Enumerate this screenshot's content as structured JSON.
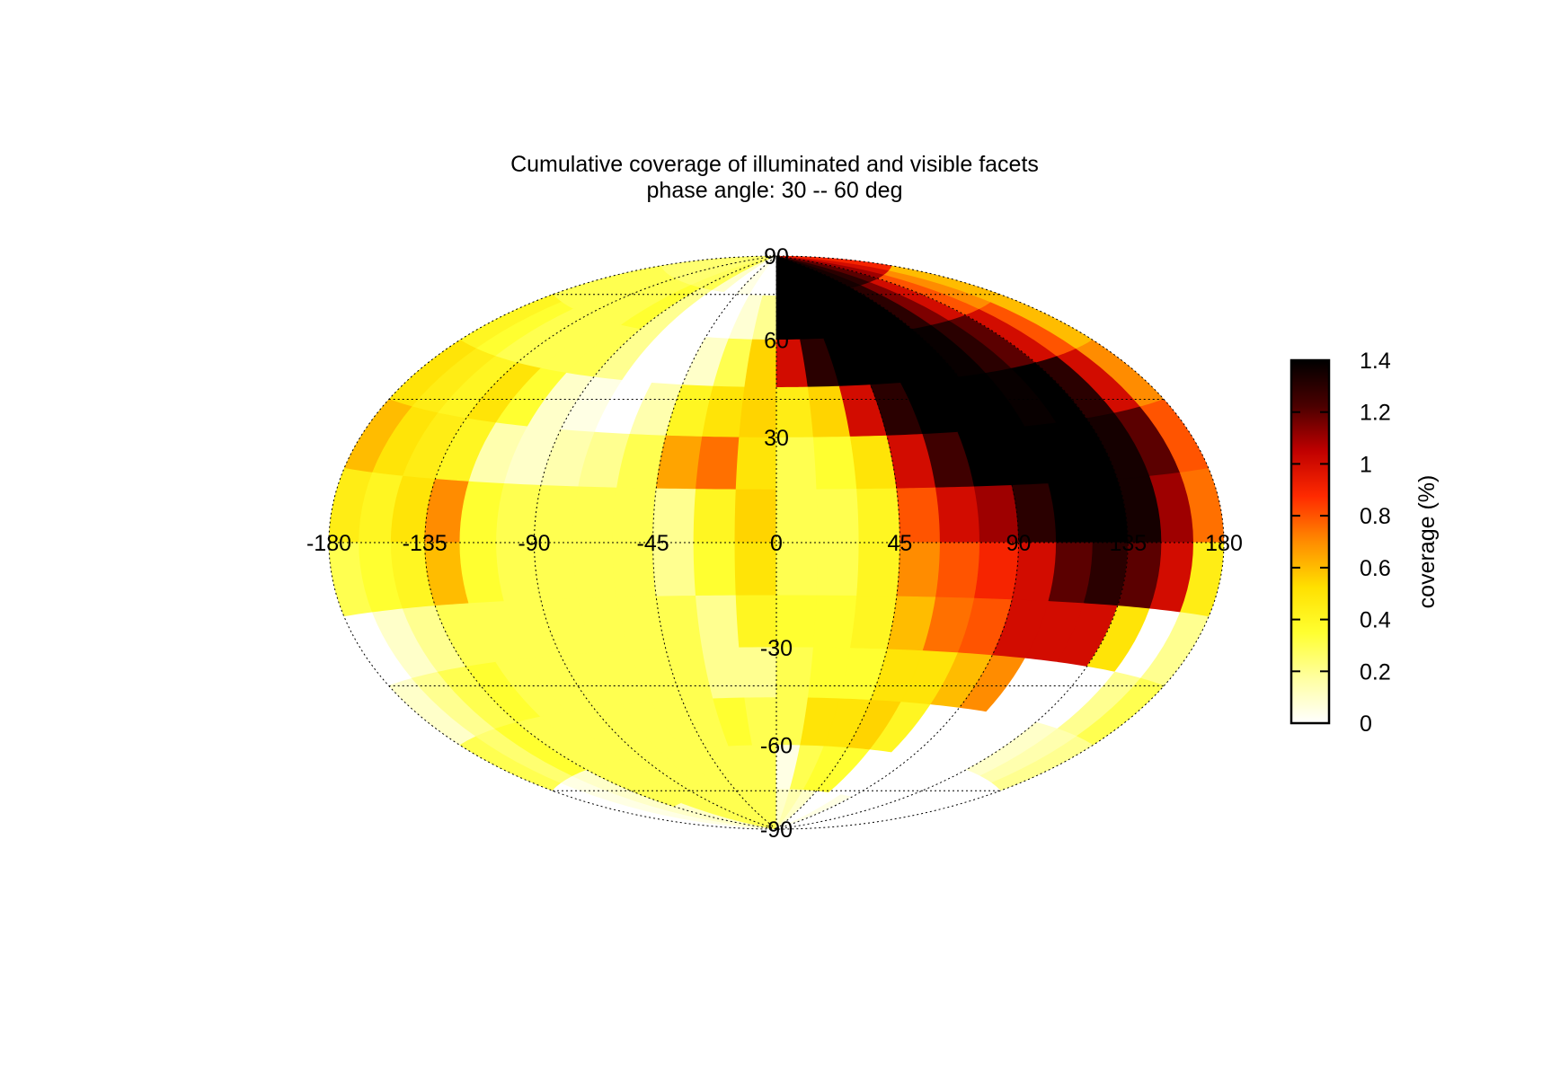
{
  "chart_data": {
    "type": "heatmap",
    "projection": "hammer-aitoff",
    "title": "Cumulative coverage of illuminated and visible facets",
    "subtitle": "phase angle:  30 --  60 deg",
    "x_ticks": [
      "-180",
      "-135",
      "-90",
      "-45",
      "0",
      "45",
      "90",
      "135",
      "180"
    ],
    "y_ticks": [
      "90",
      "60",
      "30",
      "-30",
      "-60",
      "-90"
    ],
    "xlim": [
      -180,
      180
    ],
    "ylim": [
      -90,
      90
    ],
    "grid": true,
    "colorbar": {
      "label": "coverage (%)",
      "ticks": [
        "0",
        "0.2",
        "0.4",
        "0.6",
        "0.8",
        "1",
        "1.2",
        "1.4"
      ],
      "range": [
        0,
        1.4
      ],
      "palette": [
        "#ffffff",
        "#ffffa0",
        "#ffff30",
        "#ffe000",
        "#ff8c00",
        "#ff2a00",
        "#c00000",
        "#4a0000",
        "#000000"
      ]
    },
    "lon_bins_deg": [
      -180,
      -165,
      -150,
      -135,
      -120,
      -105,
      -90,
      -75,
      -60,
      -45,
      -30,
      -15,
      0,
      15,
      30,
      45,
      60,
      75,
      90,
      105,
      120,
      135,
      150,
      165,
      180
    ],
    "lat_bins_deg": [
      90,
      75,
      60,
      45,
      30,
      15,
      0,
      -15,
      -30,
      -45,
      -60,
      -75,
      -90
    ],
    "values": [
      [
        0.25,
        0.25,
        0.25,
        0.25,
        0.25,
        0.28,
        0.3,
        0.1,
        0.0,
        0.05,
        0.0,
        0.0,
        1.4,
        1.4,
        1.4,
        1.4,
        1.4,
        1.4,
        1.35,
        1.3,
        1.2,
        1.1,
        1.0,
        0.9
      ],
      [
        0.3,
        0.3,
        0.3,
        0.3,
        0.3,
        0.35,
        0.2,
        0.0,
        0.0,
        0.0,
        0.08,
        0.2,
        1.4,
        1.4,
        1.4,
        1.4,
        1.4,
        1.4,
        1.3,
        1.15,
        1.0,
        0.8,
        0.7,
        0.6
      ],
      [
        0.4,
        0.35,
        0.3,
        0.3,
        0.3,
        0.3,
        0.2,
        0.0,
        0.0,
        0.1,
        0.3,
        0.55,
        1.0,
        1.3,
        1.4,
        1.4,
        1.4,
        1.4,
        1.38,
        1.3,
        1.2,
        1.0,
        0.8,
        0.6
      ],
      [
        0.5,
        0.45,
        0.4,
        0.5,
        0.35,
        0.1,
        0.05,
        0.0,
        0.15,
        0.4,
        0.5,
        0.55,
        0.45,
        0.55,
        1.0,
        1.3,
        1.4,
        1.4,
        1.4,
        1.38,
        1.4,
        1.3,
        1.0,
        0.7
      ],
      [
        0.6,
        0.5,
        0.45,
        0.4,
        0.15,
        0.1,
        0.15,
        0.2,
        0.3,
        0.65,
        0.75,
        0.5,
        0.3,
        0.35,
        0.5,
        1.0,
        1.25,
        1.4,
        1.4,
        1.4,
        1.4,
        1.35,
        1.2,
        0.8
      ],
      [
        0.45,
        0.4,
        0.5,
        0.7,
        0.35,
        0.3,
        0.3,
        0.3,
        0.3,
        0.2,
        0.4,
        0.55,
        0.3,
        0.3,
        0.4,
        0.8,
        1.0,
        1.1,
        1.3,
        1.4,
        1.4,
        1.35,
        1.1,
        0.75
      ],
      [
        0.3,
        0.35,
        0.4,
        0.6,
        0.35,
        0.3,
        0.3,
        0.3,
        0.3,
        0.2,
        0.35,
        0.5,
        0.3,
        0.3,
        0.4,
        0.7,
        0.8,
        0.9,
        1.0,
        1.2,
        1.3,
        1.2,
        1.0,
        0.45
      ],
      [
        0.0,
        0.1,
        0.2,
        0.3,
        0.3,
        0.3,
        0.3,
        0.3,
        0.3,
        0.3,
        0.2,
        0.4,
        0.35,
        0.35,
        0.4,
        0.6,
        0.75,
        0.8,
        1.0,
        1.0,
        1.0,
        0.5,
        0.0,
        0.2
      ],
      [
        0.1,
        0.2,
        0.3,
        0.35,
        0.3,
        0.3,
        0.3,
        0.3,
        0.3,
        0.3,
        0.2,
        0.2,
        0.3,
        0.35,
        0.35,
        0.5,
        0.5,
        0.6,
        0.7,
        0.0,
        0.0,
        0.0,
        0.2,
        0.3
      ],
      [
        0.3,
        0.25,
        0.35,
        0.3,
        0.3,
        0.3,
        0.3,
        0.3,
        0.3,
        0.3,
        0.35,
        0.3,
        0.3,
        0.5,
        0.5,
        0.55,
        0.4,
        0.0,
        0.0,
        0.0,
        0.0,
        0.1,
        0.15,
        0.2
      ],
      [
        0.0,
        0.05,
        0.1,
        0.3,
        0.3,
        0.3,
        0.3,
        0.3,
        0.3,
        0.3,
        0.3,
        0.3,
        0.05,
        0.3,
        0.35,
        0.35,
        0.0,
        0.0,
        0.0,
        0.0,
        0.0,
        0.0,
        0.0,
        0.0
      ],
      [
        0.0,
        0.05,
        0.1,
        0.1,
        0.3,
        0.3,
        0.3,
        0.3,
        0.3,
        0.3,
        0.3,
        0.3,
        0.1,
        0.15,
        0.1,
        0.0,
        0.0,
        0.05,
        0.0,
        0.0,
        0.0,
        0.0,
        0.0,
        0.0
      ]
    ]
  }
}
